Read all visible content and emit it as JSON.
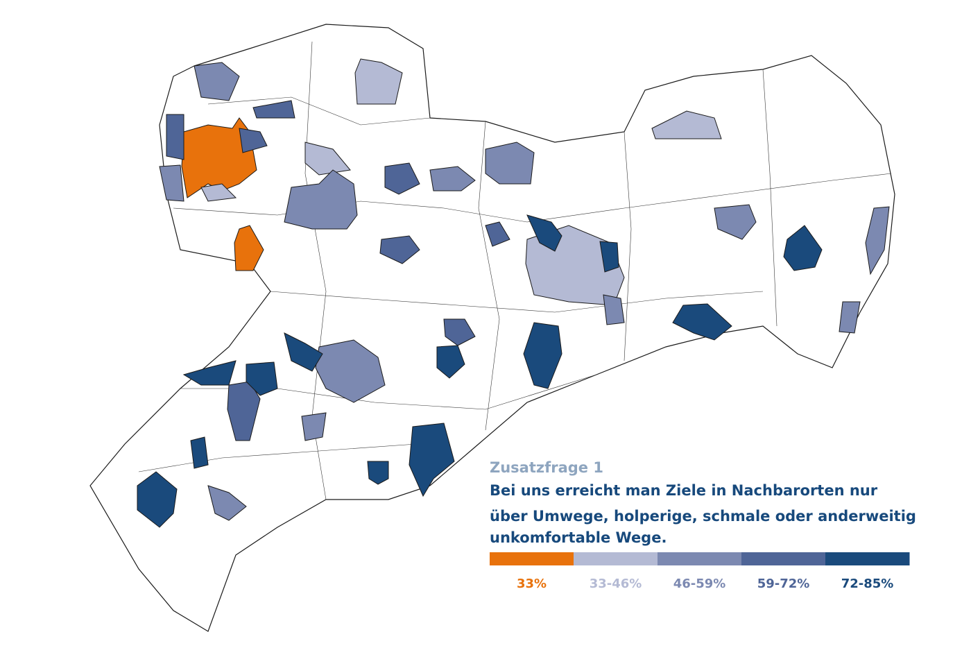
{
  "subtitle": "Zusatzfrage 1",
  "question_lines": [
    "Bei uns erreicht man Ziele in Nachbarorten nur",
    "über Umwege, holperige, schmale oder anderweitig",
    "unkomfortable Wege."
  ],
  "legend": [
    {
      "label": "33%",
      "color": "#e8720c"
    },
    {
      "label": "33-46%",
      "color": "#b4bad4"
    },
    {
      "label": "46-59%",
      "color": "#7c89b1"
    },
    {
      "label": "59-72%",
      "color": "#4f6597"
    },
    {
      "label": "72-85%",
      "color": "#1a4a7c"
    }
  ]
}
